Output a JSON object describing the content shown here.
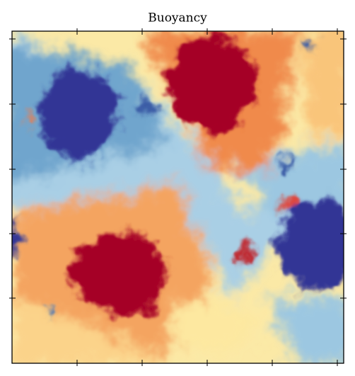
{
  "title": "Buoyancy"
}
